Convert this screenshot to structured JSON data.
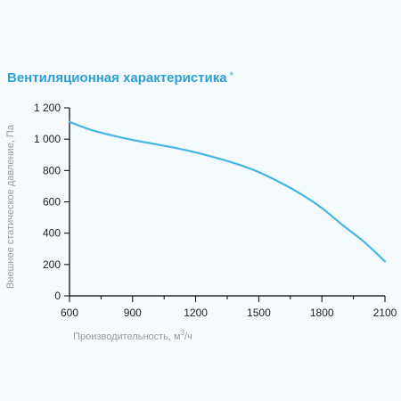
{
  "chart_data": {
    "type": "line",
    "title": "Вентиляционная характеристика",
    "title_mark": "*",
    "xlabel_main": "Производительность, м",
    "xlabel_sup": "3",
    "xlabel_tail": "/ч",
    "ylabel": "Внешнее статическое давление, Па",
    "xlim": [
      600,
      2100
    ],
    "ylim": [
      0,
      1200
    ],
    "x_ticks": [
      600,
      900,
      1200,
      1500,
      1800,
      2100
    ],
    "x_tick_labels": [
      "600",
      "900",
      "1200",
      "1500",
      "1800",
      "2100"
    ],
    "y_ticks": [
      0,
      200,
      400,
      600,
      800,
      1000,
      1200
    ],
    "y_tick_labels": [
      "0",
      "200",
      "400",
      "600",
      "800",
      "1 000",
      "1 200"
    ],
    "grid": false,
    "line_color": "#44b6e4",
    "axis_color": "#000000",
    "series": [
      {
        "x": [
          600,
          700,
          800,
          900,
          1000,
          1100,
          1200,
          1300,
          1400,
          1500,
          1600,
          1700,
          1800,
          1900,
          2000,
          2100
        ],
        "y": [
          1110,
          1060,
          1025,
          995,
          970,
          945,
          915,
          880,
          840,
          790,
          725,
          650,
          560,
          450,
          345,
          220
        ]
      }
    ]
  }
}
